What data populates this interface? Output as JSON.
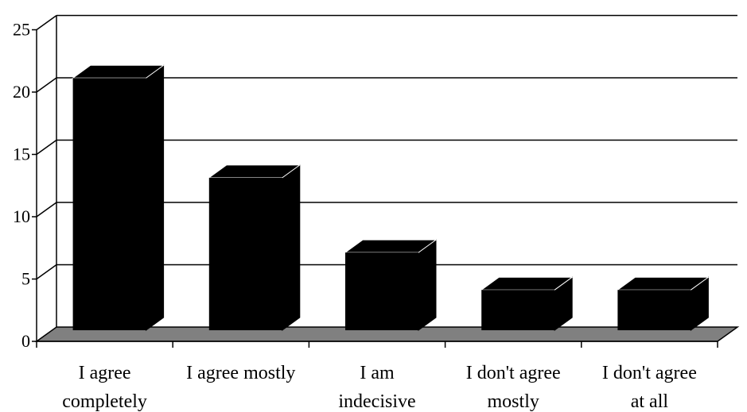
{
  "chart_data": {
    "type": "bar",
    "categories": [
      [
        "I agree",
        "completely"
      ],
      [
        "I agree mostly"
      ],
      [
        "I am",
        "indecisive"
      ],
      [
        "I don't agree",
        "mostly"
      ],
      [
        "I don't agree",
        "at all"
      ]
    ],
    "values": [
      21,
      13,
      7,
      4,
      4
    ],
    "yticks": [
      "0",
      "5",
      "10",
      "15",
      "20",
      "25"
    ],
    "ylim": [
      0,
      25
    ],
    "grid": true,
    "style": "3d-column",
    "colors": {
      "bar": "#000000",
      "floor": "#808080",
      "grid": "#000000",
      "background": "#ffffff"
    }
  }
}
